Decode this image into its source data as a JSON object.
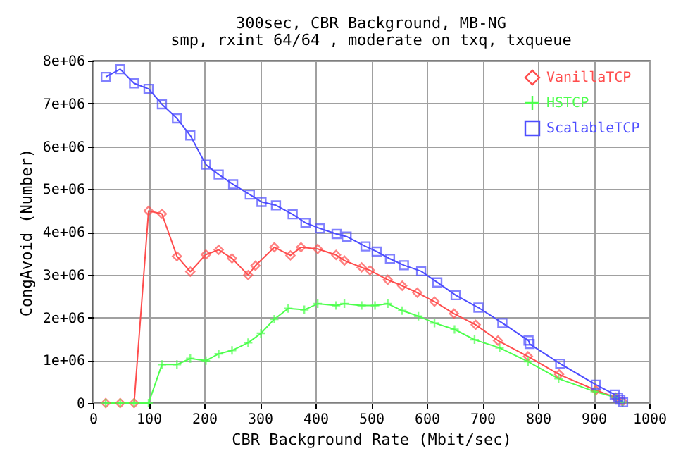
{
  "chart_data": {
    "type": "line",
    "title": "300sec, CBR Background, MB-NG",
    "subtitle": "smp, rxint 64/64 , moderate on txq, txqueue",
    "xlabel": "CBR Background Rate (Mbit/sec)",
    "ylabel": "CongAvoid (Number)",
    "xlim": [
      0,
      1000
    ],
    "ylim": [
      0,
      8000000
    ],
    "xticks": [
      0,
      100,
      200,
      300,
      400,
      500,
      600,
      700,
      800,
      900,
      1000
    ],
    "yticks": [
      0,
      {
        "value": 1000000,
        "label": "1e+06"
      },
      {
        "value": 2000000,
        "label": "2e+06"
      },
      {
        "value": 3000000,
        "label": "3e+06"
      },
      {
        "value": 4000000,
        "label": "4e+06"
      },
      {
        "value": 5000000,
        "label": "5e+06"
      },
      {
        "value": 6000000,
        "label": "6e+06"
      },
      {
        "value": 7000000,
        "label": "7e+06"
      },
      {
        "value": 8000000,
        "label": "8e+06"
      }
    ],
    "grid": true,
    "legend": "top right",
    "series": [
      {
        "name": "VanillaTCP",
        "color": "#ff4d4d",
        "marker": "diamond",
        "x": [
          23,
          49,
          74,
          100,
          124,
          151,
          175,
          203,
          226,
          250,
          279,
          292,
          326,
          355,
          374,
          404,
          437,
          452,
          483,
          498,
          530,
          556,
          583,
          614,
          649,
          688,
          728,
          782,
          838,
          904,
          940,
          952
        ],
        "values": [
          0,
          0,
          0,
          4490000,
          4420000,
          3430000,
          3070000,
          3470000,
          3580000,
          3380000,
          2990000,
          3210000,
          3640000,
          3450000,
          3640000,
          3600000,
          3460000,
          3330000,
          3170000,
          3100000,
          2880000,
          2740000,
          2580000,
          2370000,
          2090000,
          1830000,
          1460000,
          1090000,
          670000,
          300000,
          130000,
          40000
        ]
      },
      {
        "name": "HSTCP",
        "color": "#4dff4d",
        "marker": "cross",
        "x": [
          23,
          49,
          74,
          100,
          124,
          151,
          175,
          203,
          226,
          250,
          279,
          302,
          326,
          351,
          380,
          404,
          437,
          452,
          483,
          507,
          530,
          556,
          585,
          614,
          650,
          686,
          731,
          782,
          837,
          902,
          940,
          952
        ],
        "values": [
          0,
          0,
          0,
          0,
          900000,
          900000,
          1040000,
          990000,
          1150000,
          1230000,
          1410000,
          1630000,
          1960000,
          2210000,
          2180000,
          2320000,
          2280000,
          2320000,
          2280000,
          2280000,
          2320000,
          2160000,
          2030000,
          1870000,
          1720000,
          1480000,
          1290000,
          970000,
          570000,
          270000,
          130000,
          20000
        ]
      },
      {
        "name": "ScalableTCP",
        "color": "#4d4dff",
        "marker": "square",
        "x": [
          23,
          49,
          74,
          100,
          124,
          151,
          175,
          203,
          226,
          252,
          282,
          303,
          329,
          359,
          382,
          408,
          438,
          456,
          490,
          510,
          534,
          559,
          590,
          619,
          652,
          693,
          736,
          783,
          785,
          840,
          904,
          938,
          944,
          948,
          953
        ],
        "values": [
          7620000,
          7800000,
          7470000,
          7340000,
          6980000,
          6650000,
          6250000,
          5570000,
          5340000,
          5110000,
          4870000,
          4700000,
          4620000,
          4410000,
          4210000,
          4080000,
          3950000,
          3890000,
          3660000,
          3540000,
          3370000,
          3220000,
          3080000,
          2820000,
          2520000,
          2230000,
          1870000,
          1460000,
          1380000,
          920000,
          430000,
          200000,
          130000,
          80000,
          20000
        ]
      }
    ]
  }
}
